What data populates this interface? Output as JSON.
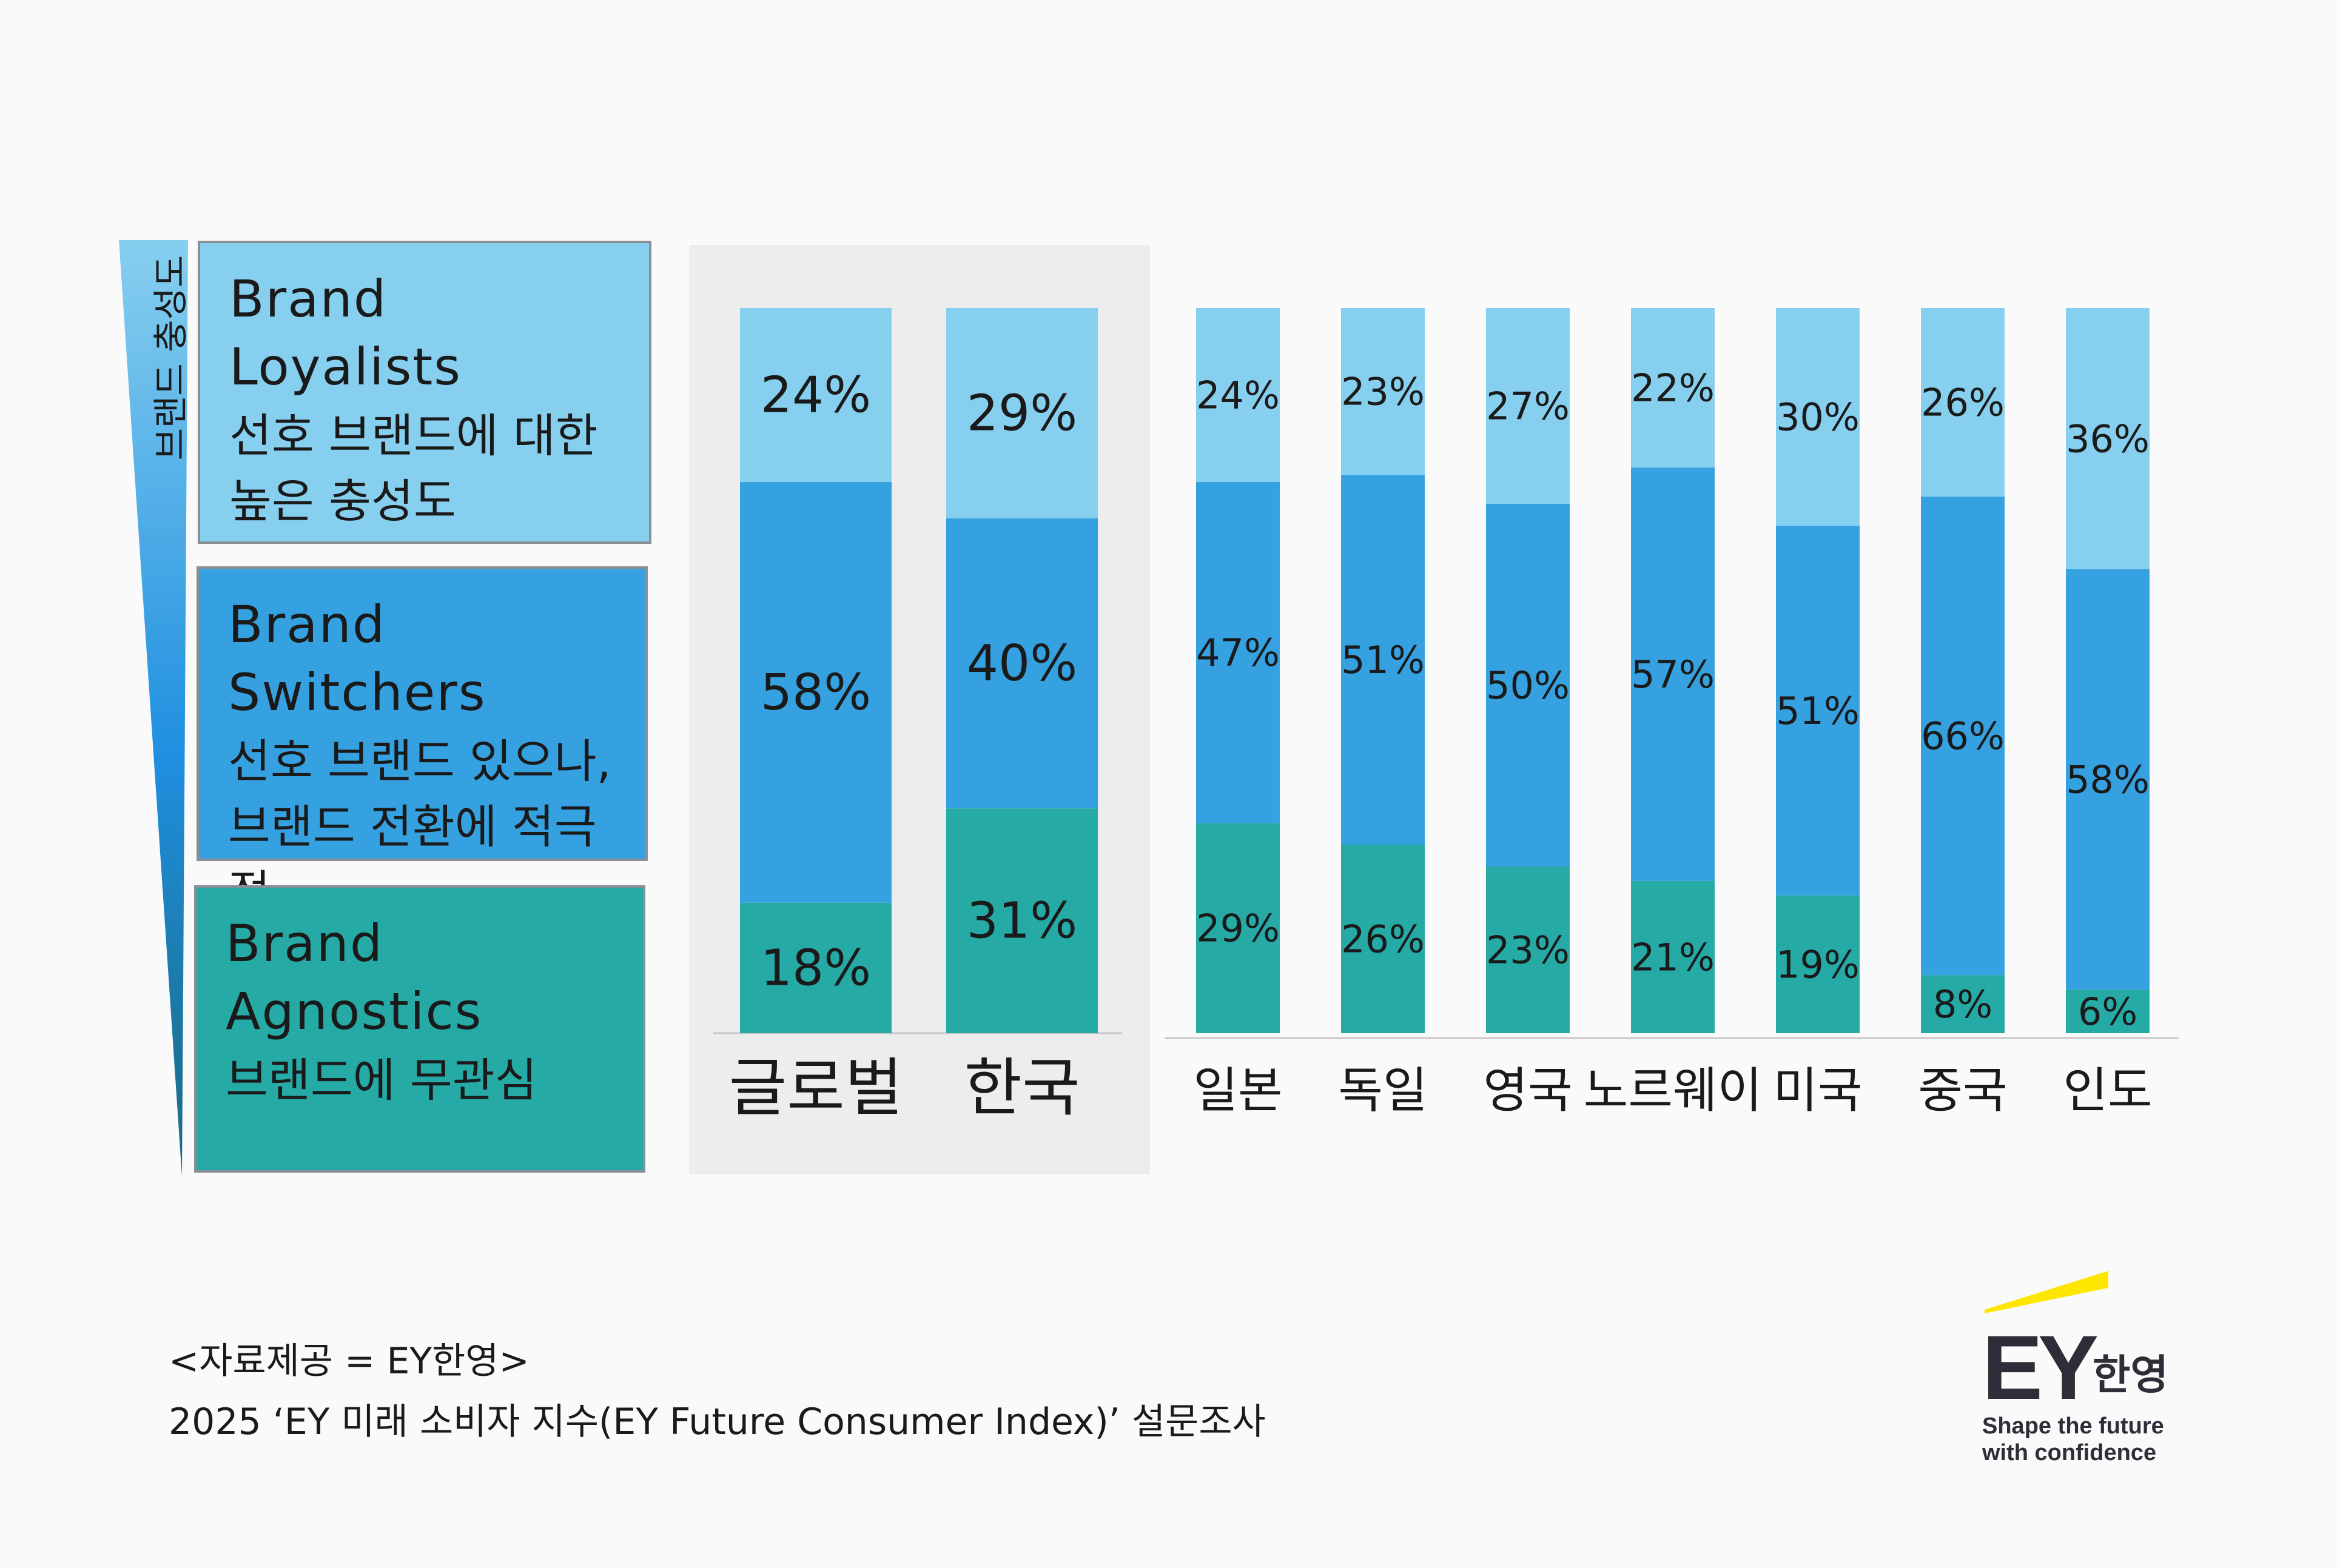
{
  "legend": {
    "axis_label": "브랜드 충성도",
    "segments": [
      {
        "title": "Brand\nLoyalists",
        "desc": "선호 브랜드에 대한\n높은 충성도",
        "color": "#87cfef"
      },
      {
        "title": "Brand\nSwitchers",
        "desc": "선호 브랜드 있으나,\n브랜드 전환에 적극적",
        "color": "#36a1e1"
      },
      {
        "title": "Brand\nAgnostics",
        "desc": "브랜드에 무관심",
        "color": "#25aaa6"
      }
    ]
  },
  "chart_data": {
    "type": "bar",
    "stacked": true,
    "categories": [
      "글로벌",
      "한국",
      "일본",
      "독일",
      "영국",
      "노르웨이",
      "미국",
      "중국",
      "인도"
    ],
    "highlighted_categories": [
      "글로벌",
      "한국"
    ],
    "series": [
      {
        "name": "Brand Agnostics",
        "color": "#25aaa6",
        "values": [
          18,
          31,
          29,
          26,
          23,
          21,
          19,
          8,
          6
        ],
        "labels": [
          "18%",
          "31%",
          "29%",
          "26%",
          "23%",
          "21%",
          "19%",
          "8%",
          "6%"
        ]
      },
      {
        "name": "Brand Switchers",
        "color": "#36a1e1",
        "values": [
          58,
          40,
          47,
          51,
          50,
          57,
          51,
          66,
          58
        ],
        "labels": [
          "58%",
          "40%",
          "47%",
          "51%",
          "50%",
          "57%",
          "51%",
          "66%",
          "58%"
        ]
      },
      {
        "name": "Brand Loyalists",
        "color": "#87cfef",
        "values": [
          24,
          29,
          24,
          23,
          27,
          22,
          30,
          26,
          36
        ],
        "labels": [
          "24%",
          "29%",
          "24%",
          "23%",
          "27%",
          "22%",
          "30%",
          "26%",
          "36%"
        ]
      }
    ],
    "ylim": [
      0,
      100
    ],
    "grid": false,
    "legend_position": "left"
  },
  "source": {
    "line1": "<자료제공 = EY한영>",
    "line2": "2025 ‘EY 미래 소비자 지수(EY Future Consumer Index)’ 설문조사"
  },
  "logo": {
    "brand": "EY",
    "local": "한영",
    "tagline": "Shape the future\nwith confidence",
    "accent_color": "#ffe600"
  }
}
